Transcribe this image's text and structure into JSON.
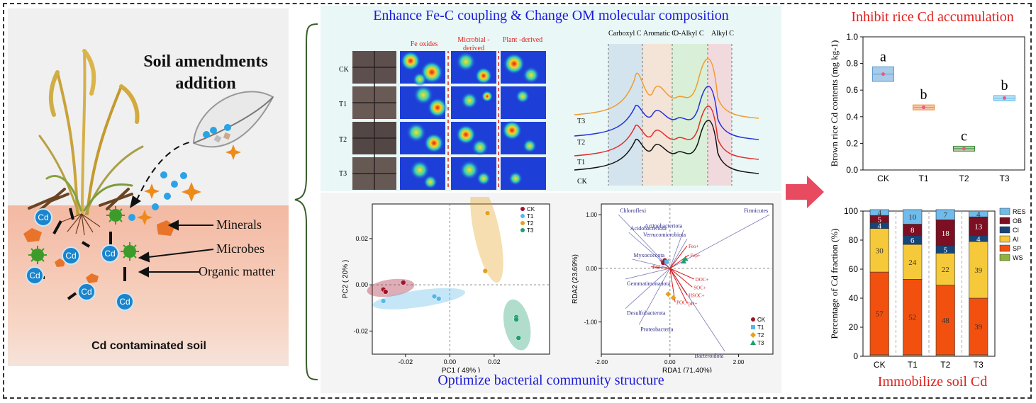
{
  "left": {
    "title": "Soil amendments addition",
    "labels": {
      "minerals": "Minerals",
      "microbes": "Microbes",
      "organic_matter": "Organic matter"
    },
    "cd_label": "Cd",
    "bottom": "Cd contaminated soil"
  },
  "middle": {
    "top_title": "Enhance Fe-C coupling & Change OM molecular composition",
    "bottom_title": "Optimize bacterial community structure",
    "map_headers": [
      "Fe oxides",
      "Microbial -derived",
      "Plant -derived"
    ],
    "map_rows": [
      "CK",
      "T1",
      "T2",
      "T3"
    ],
    "spectra_regions": [
      "Carboxyl C",
      "Aromatic C",
      "O-Alkyl C",
      "Alkyl C"
    ],
    "spectra_rows": [
      "T3",
      "T2",
      "T1",
      "CK"
    ],
    "colors": {
      "CK": "#a0132b",
      "T1": "#58b6e8",
      "T2": "#e6a11c",
      "T3": "#1f9e6e"
    }
  },
  "chart_data": [
    {
      "type": "box",
      "title": "Inhibit rice Cd accumulation",
      "ylabel": "Brown rice Cd contents (mg kg-1)",
      "categories": [
        "CK",
        "T1",
        "T2",
        "T3"
      ],
      "values": [
        0.72,
        0.47,
        0.16,
        0.54
      ],
      "letters": [
        "a",
        "b",
        "c",
        "b"
      ],
      "ylim": [
        0.0,
        1.0
      ],
      "yticks": [
        "0.0",
        "0.2",
        "0.4",
        "0.6",
        "0.8",
        "1.0"
      ]
    },
    {
      "type": "bar",
      "stacked": true,
      "title": "Immobilize soil Cd",
      "ylabel": "Percentage of Cd fraction (%)",
      "categories": [
        "CK",
        "T1",
        "T2",
        "T3"
      ],
      "ylim": [
        0,
        100
      ],
      "yticks": [
        "0",
        "20",
        "40",
        "60",
        "80",
        "100"
      ],
      "series": [
        {
          "name": "WS",
          "color": "#8db33a",
          "values": [
            1,
            1,
            1,
            1
          ]
        },
        {
          "name": "SP",
          "color": "#f2500f",
          "values": [
            57,
            52,
            48,
            39
          ]
        },
        {
          "name": "AI",
          "color": "#f5c93a",
          "values": [
            30,
            24,
            22,
            39
          ]
        },
        {
          "name": "CI",
          "color": "#16457a",
          "values": [
            4,
            6,
            5,
            4
          ]
        },
        {
          "name": "OB",
          "color": "#7c0f22",
          "values": [
            5,
            8,
            18,
            13
          ]
        },
        {
          "name": "RES",
          "color": "#6fbcec",
          "values": [
            4,
            10,
            7,
            4
          ]
        }
      ],
      "labels": [
        [
          "57",
          "30",
          "4",
          "5",
          "4"
        ],
        [
          "52",
          "24",
          "6",
          "8",
          "10"
        ],
        [
          "48",
          "22",
          "5",
          "18",
          "7"
        ],
        [
          "39",
          "39",
          "4",
          "13",
          "4"
        ]
      ]
    },
    {
      "type": "scatter",
      "xlabel": "PC1 ( 49% )",
      "ylabel": "PC2 ( 20% )",
      "xlim": [
        -0.035,
        0.045
      ],
      "ylim": [
        -0.03,
        0.035
      ],
      "xticks": [
        "-0.02",
        "0.00",
        "0.02"
      ],
      "yticks": [
        "-0.02",
        "0.00",
        "0.02"
      ],
      "legend": [
        "CK",
        "T1",
        "T2",
        "T3"
      ],
      "series": [
        {
          "name": "CK",
          "x": [
            -0.03,
            -0.029,
            -0.021
          ],
          "y": [
            -0.002,
            -0.003,
            0.001
          ]
        },
        {
          "name": "T1",
          "x": [
            -0.03,
            -0.007,
            -0.005
          ],
          "y": [
            -0.007,
            -0.005,
            -0.006
          ]
        },
        {
          "name": "T2",
          "x": [
            0.017,
            0.017,
            0.016
          ],
          "y": [
            0.031,
            0.031,
            0.006
          ]
        },
        {
          "name": "T3",
          "x": [
            0.03,
            0.03,
            0.031
          ],
          "y": [
            -0.014,
            -0.015,
            -0.023
          ]
        }
      ]
    },
    {
      "type": "biplot",
      "xlabel": "RDA1 (71.40%)",
      "ylabel": "RDA2 (23.69%)",
      "xlim": [
        -2.0,
        3.0
      ],
      "ylim": [
        -1.6,
        1.2
      ],
      "xticks": [
        "-2.00",
        "0.00",
        "2.00"
      ],
      "yticks": [
        "-1.00",
        "0.00",
        "1.00"
      ],
      "legend": [
        "CK",
        "T1",
        "T2",
        "T3"
      ],
      "species": [
        {
          "name": "Chloroflexi",
          "x": -1.5,
          "y": 1.0
        },
        {
          "name": "Firmicutes",
          "x": 2.9,
          "y": 1.0
        },
        {
          "name": "Actinobacteriota",
          "x": 0.4,
          "y": 0.72
        },
        {
          "name": "Verrucomicrobiota",
          "x": 0.5,
          "y": 0.55
        },
        {
          "name": "Acidobacteriota",
          "x": -1.2,
          "y": 0.67
        },
        {
          "name": "Myxococcota",
          "x": -1.1,
          "y": 0.17
        },
        {
          "name": "Gemmatimonadota",
          "x": -1.3,
          "y": -0.2
        },
        {
          "name": "Desulfobacterota",
          "x": -1.3,
          "y": -0.75
        },
        {
          "name": "Proteobacteria",
          "x": -0.9,
          "y": -1.05
        },
        {
          "name": "Bacteroidota",
          "x": 1.6,
          "y": -1.55
        }
      ],
      "env": [
        {
          "name": "Feo+",
          "x": 0.5,
          "y": 0.42
        },
        {
          "name": "Fep+",
          "x": 0.55,
          "y": 0.25
        },
        {
          "name": "CEC",
          "x": -0.3,
          "y": 0.15
        },
        {
          "name": "Fed",
          "x": -0.55,
          "y": 0.03
        },
        {
          "name": "DOC+",
          "x": 0.7,
          "y": -0.2
        },
        {
          "name": "SOC+",
          "x": 0.65,
          "y": -0.35
        },
        {
          "name": "HSOC+",
          "x": 0.5,
          "y": -0.5
        },
        {
          "name": "POC+",
          "x": 0.15,
          "y": -0.63
        },
        {
          "name": "pH+",
          "x": 0.5,
          "y": -0.65
        }
      ],
      "samples": [
        {
          "name": "CK",
          "x": -0.15,
          "y": 0.15
        },
        {
          "name": "CK",
          "x": -0.2,
          "y": 0.1
        },
        {
          "name": "T1",
          "x": -0.1,
          "y": 0.12
        },
        {
          "name": "T2",
          "x": -0.05,
          "y": -0.48
        },
        {
          "name": "T2",
          "x": 0.1,
          "y": -0.55
        },
        {
          "name": "T3",
          "x": 0.4,
          "y": 0.13
        },
        {
          "name": "T3",
          "x": 0.45,
          "y": 0.18
        }
      ]
    }
  ]
}
